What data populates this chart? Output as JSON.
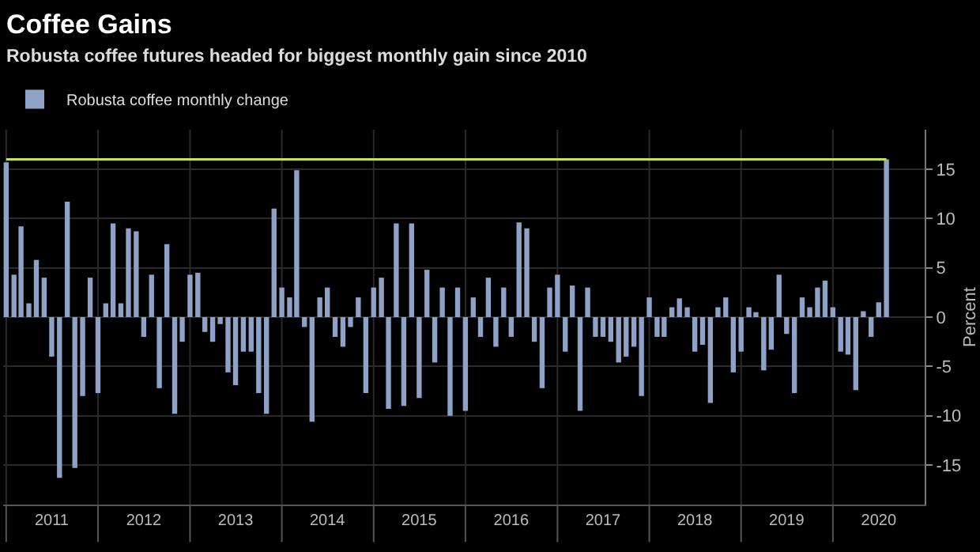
{
  "chart_data": {
    "type": "bar",
    "title": "Coffee Gains",
    "subtitle": "Robusta coffee futures headed for biggest monthly gain since 2010",
    "ylabel": "Percent",
    "x": [
      "2011-01",
      "2011-02",
      "2011-03",
      "2011-04",
      "2011-05",
      "2011-06",
      "2011-07",
      "2011-08",
      "2011-09",
      "2011-10",
      "2011-11",
      "2011-12",
      "2012-01",
      "2012-02",
      "2012-03",
      "2012-04",
      "2012-05",
      "2012-06",
      "2012-07",
      "2012-08",
      "2012-09",
      "2012-10",
      "2012-11",
      "2012-12",
      "2013-01",
      "2013-02",
      "2013-03",
      "2013-04",
      "2013-05",
      "2013-06",
      "2013-07",
      "2013-08",
      "2013-09",
      "2013-10",
      "2013-11",
      "2013-12",
      "2014-01",
      "2014-02",
      "2014-03",
      "2014-04",
      "2014-05",
      "2014-06",
      "2014-07",
      "2014-08",
      "2014-09",
      "2014-10",
      "2014-11",
      "2014-12",
      "2015-01",
      "2015-02",
      "2015-03",
      "2015-04",
      "2015-05",
      "2015-06",
      "2015-07",
      "2015-08",
      "2015-09",
      "2015-10",
      "2015-11",
      "2015-12",
      "2016-01",
      "2016-02",
      "2016-03",
      "2016-04",
      "2016-05",
      "2016-06",
      "2016-07",
      "2016-08",
      "2016-09",
      "2016-10",
      "2016-11",
      "2016-12",
      "2017-01",
      "2017-02",
      "2017-03",
      "2017-04",
      "2017-05",
      "2017-06",
      "2017-07",
      "2017-08",
      "2017-09",
      "2017-10",
      "2017-11",
      "2017-12",
      "2018-01",
      "2018-02",
      "2018-03",
      "2018-04",
      "2018-05",
      "2018-06",
      "2018-07",
      "2018-08",
      "2018-09",
      "2018-10",
      "2018-11",
      "2018-12",
      "2019-01",
      "2019-02",
      "2019-03",
      "2019-04",
      "2019-05",
      "2019-06",
      "2019-07",
      "2019-08",
      "2019-09",
      "2019-10",
      "2019-11",
      "2019-12",
      "2020-01",
      "2020-02",
      "2020-03",
      "2020-04",
      "2020-05",
      "2020-06",
      "2020-07",
      "2020-08"
    ],
    "series": [
      {
        "name": "Robusta coffee monthly change",
        "color": "#8da2c6",
        "values": [
          15.7,
          4.3,
          9.2,
          1.4,
          5.8,
          4,
          -4,
          -16.3,
          11.7,
          -15.3,
          -8,
          4,
          -7.7,
          1.4,
          9.5,
          1.4,
          9,
          8.7,
          -2,
          4.3,
          -7.2,
          7.4,
          -9.8,
          -2.5,
          4.3,
          4.5,
          -1.5,
          -2.5,
          -0.7,
          -5.6,
          -6.9,
          -3.5,
          -3.5,
          -7.7,
          -9.8,
          11,
          3,
          2,
          14.9,
          -1,
          -10.6,
          2,
          3,
          -2,
          -3,
          -1,
          2,
          -7.7,
          3,
          4,
          -9.3,
          9.5,
          -9,
          9.5,
          -8.2,
          4.8,
          -4.6,
          3,
          -10,
          3,
          -9.5,
          2,
          -2,
          4,
          -3,
          3,
          -2,
          9.6,
          9,
          -2.5,
          -7.2,
          3,
          4.3,
          -3.5,
          3.2,
          -9.5,
          3,
          -2,
          -2,
          -2.5,
          -4.6,
          -4,
          -3,
          -8,
          2,
          -2,
          -2,
          1,
          1.9,
          1,
          -3.5,
          -2.8,
          -8.7,
          1,
          2,
          -5.6,
          -3.5,
          1,
          0.5,
          -5.4,
          -3.3,
          4.3,
          -1.7,
          -7.7,
          2,
          1,
          3,
          3.7,
          1,
          -3.5,
          -3.8,
          -7.4,
          0.6,
          -2,
          1.5,
          16
        ]
      }
    ],
    "xlim": [
      "2010-12-20",
      "2020-12-31"
    ],
    "xticks": [
      {
        "value": "2011-01-01",
        "label": null
      },
      {
        "value": "2011-07-01",
        "label": "2011"
      },
      {
        "value": "2012-01-01",
        "label": null
      },
      {
        "value": "2012-07-01",
        "label": "2012"
      },
      {
        "value": "2013-01-01",
        "label": null
      },
      {
        "value": "2013-07-01",
        "label": "2013"
      },
      {
        "value": "2014-01-01",
        "label": null
      },
      {
        "value": "2014-07-01",
        "label": "2014"
      },
      {
        "value": "2015-01-01",
        "label": null
      },
      {
        "value": "2015-07-01",
        "label": "2015"
      },
      {
        "value": "2016-01-01",
        "label": null
      },
      {
        "value": "2016-07-01",
        "label": "2016"
      },
      {
        "value": "2017-01-01",
        "label": null
      },
      {
        "value": "2017-07-01",
        "label": "2017"
      },
      {
        "value": "2018-01-01",
        "label": null
      },
      {
        "value": "2018-07-01",
        "label": "2018"
      },
      {
        "value": "2019-01-01",
        "label": null
      },
      {
        "value": "2019-07-01",
        "label": "2019"
      },
      {
        "value": "2020-01-01",
        "label": null
      },
      {
        "value": "2020-07-01",
        "label": "2020"
      }
    ],
    "ylim": [
      -19,
      19
    ],
    "yticks": [
      -15,
      -10,
      -5,
      0,
      5,
      10,
      15
    ],
    "ref_lines": [
      {
        "axis": "y",
        "value": 16,
        "label": null,
        "color": "#c5e34a"
      }
    ],
    "grid": true,
    "legend": "top left"
  }
}
